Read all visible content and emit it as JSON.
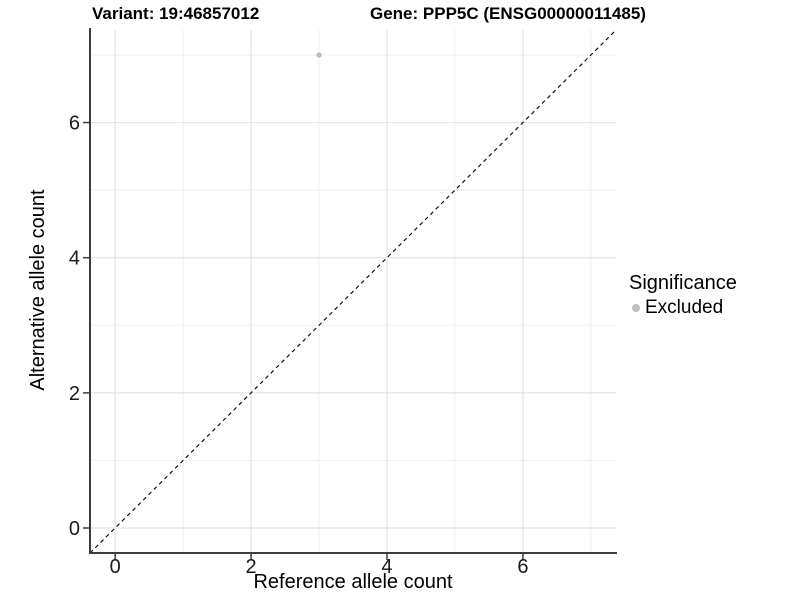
{
  "chart_data": {
    "type": "scatter",
    "titles": {
      "left": "Variant: 19:46857012",
      "right": "Gene: PPP5C (ENSG00000011485)"
    },
    "xlabel": "Reference allele count",
    "ylabel": "Alternative allele count",
    "xlim": [
      -0.37,
      7.37
    ],
    "ylim": [
      -0.37,
      7.37
    ],
    "x_major_ticks": [
      0,
      2,
      4,
      6
    ],
    "y_major_ticks": [
      0,
      2,
      4,
      6
    ],
    "x_minor_gridlines": [
      1,
      3,
      5,
      7
    ],
    "y_minor_gridlines": [
      1,
      3,
      5,
      7
    ],
    "grid": true,
    "reference_line": {
      "type": "abline",
      "slope": 1,
      "intercept": 0,
      "style": "dashed",
      "color": "#000000"
    },
    "series": [
      {
        "name": "Excluded",
        "color": "#bebebe",
        "points": [
          {
            "x": 3,
            "y": 7
          }
        ]
      }
    ],
    "legend": {
      "title": "Significance",
      "position": "right",
      "items": [
        {
          "label": "Excluded",
          "color": "#bebebe"
        }
      ]
    }
  },
  "colors": {
    "point": "#bebebe",
    "grid_major": "#e4e4e4",
    "grid_minor": "#efefef",
    "axis_line": "#3c3c3c",
    "tick_text": "#191919",
    "dashed_line": "#000000"
  }
}
